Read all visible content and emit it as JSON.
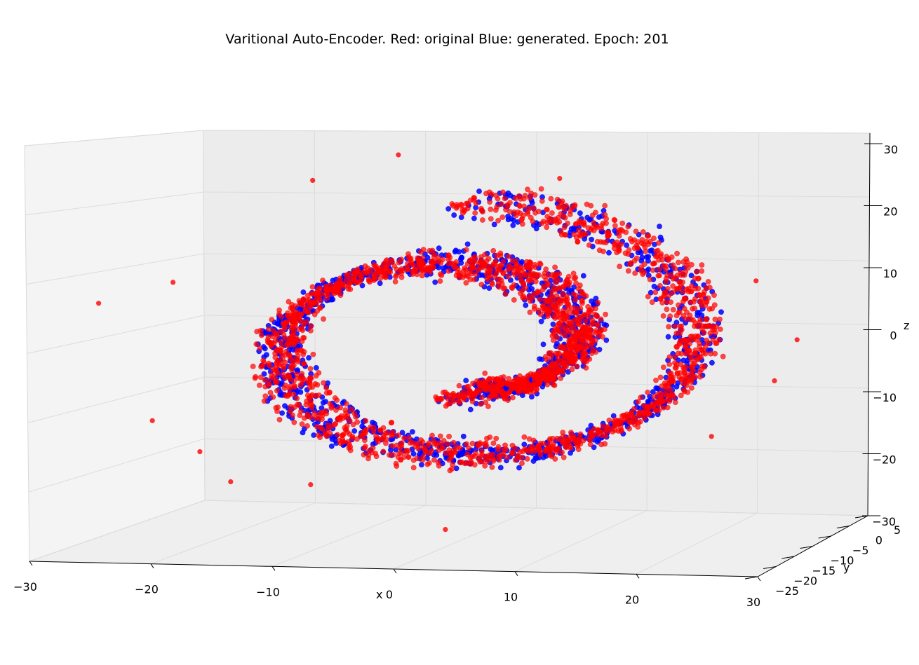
{
  "chart_data": {
    "type": "scatter",
    "title": "Varitional Auto-Encoder. Red: original Blue: generated. Epoch: 201",
    "xlabel": "x",
    "ylabel": "y",
    "zlabel": "z",
    "xlim": [
      -30,
      30
    ],
    "ylim": [
      -25,
      5
    ],
    "zlim": [
      -30,
      30
    ],
    "x_ticks": [
      "−30",
      "−20",
      "−10",
      "0",
      "10",
      "20",
      "30"
    ],
    "y_ticks": [
      "−25",
      "−20",
      "−15",
      "−10",
      "−5",
      "0",
      "5"
    ],
    "z_ticks": [
      "−30",
      "−20",
      "−10",
      "0",
      "10",
      "20",
      "30"
    ],
    "grid": true,
    "projection": "3d",
    "series": [
      {
        "name": "generated",
        "color": "#0000ff",
        "marker": "circle",
        "description_shape": "swiss roll spiral",
        "approx_center": [
          0,
          -10,
          0
        ],
        "max_radius": 22,
        "min_radius": 5,
        "turns": 1.5
      },
      {
        "name": "original",
        "color": "#ff0000",
        "marker": "circle",
        "description_shape": "swiss roll spiral",
        "approx_center": [
          0,
          -10,
          0
        ],
        "max_radius": 22,
        "min_radius": 5,
        "turns": 1.5
      }
    ]
  }
}
